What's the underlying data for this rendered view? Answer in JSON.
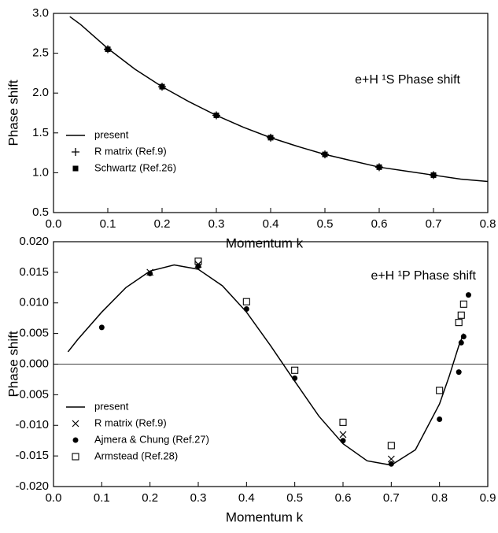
{
  "chart_data": [
    {
      "type": "line",
      "annotation": "e+H ¹S Phase shift",
      "x_label": "Momentum  k",
      "y_label": "Phase shift",
      "xlim": [
        0,
        0.8
      ],
      "ylim": [
        0.5,
        3.0
      ],
      "xticks": [
        {
          "value": 0,
          "label": "0.0"
        },
        0.1,
        0.2,
        0.3,
        0.4,
        0.5,
        0.6,
        0.7,
        0.8
      ],
      "yticks": [
        {
          "value": 0.5,
          "label": "0.5"
        },
        {
          "value": 1,
          "label": "1.0"
        },
        1.5,
        {
          "value": 2,
          "label": "2.0"
        },
        2.5,
        {
          "value": 3,
          "label": "3.0"
        }
      ],
      "legend": "lower left",
      "color": "#000000",
      "series": [
        {
          "name": "present",
          "marker": "line",
          "x": [
            0.03,
            0.05,
            0.1,
            0.15,
            0.2,
            0.25,
            0.3,
            0.35,
            0.4,
            0.45,
            0.5,
            0.55,
            0.6,
            0.65,
            0.7,
            0.75,
            0.8
          ],
          "values": [
            2.96,
            2.86,
            2.56,
            2.3,
            2.08,
            1.89,
            1.72,
            1.57,
            1.44,
            1.33,
            1.23,
            1.15,
            1.07,
            1.02,
            0.97,
            0.92,
            0.89
          ]
        },
        {
          "name": "R matrix (Ref.9)",
          "marker": "plus",
          "x": [
            0.1,
            0.2,
            0.3,
            0.4,
            0.5,
            0.6,
            0.7
          ],
          "values": [
            2.55,
            2.08,
            1.72,
            1.44,
            1.23,
            1.07,
            0.97
          ]
        },
        {
          "name": "Schwartz (Ref.26)",
          "marker": "square-filled",
          "x": [
            0.1,
            0.2,
            0.3,
            0.4,
            0.5,
            0.6,
            0.7
          ],
          "values": [
            2.55,
            2.08,
            1.72,
            1.44,
            1.23,
            1.07,
            0.97
          ]
        }
      ]
    },
    {
      "type": "line",
      "annotation": "e+H ¹P Phase shift",
      "x_label": "Momentum  k",
      "y_label": "Phase shift",
      "xlim": [
        0,
        0.9
      ],
      "ylim": [
        -0.02,
        0.02
      ],
      "zero_line": true,
      "xticks": [
        {
          "value": 0,
          "label": "0.0"
        },
        0.1,
        0.2,
        0.3,
        0.4,
        0.5,
        0.6,
        0.7,
        0.8,
        0.9
      ],
      "yticks": [
        {
          "value": -0.02,
          "label": "-0.020"
        },
        {
          "value": -0.015,
          "label": "-0.015"
        },
        {
          "value": -0.01,
          "label": "-0.010"
        },
        {
          "value": -0.005,
          "label": "-0.005"
        },
        {
          "value": 0,
          "label": "0.000"
        },
        {
          "value": 0.005,
          "label": "0.005"
        },
        {
          "value": 0.01,
          "label": "0.010"
        },
        {
          "value": 0.015,
          "label": "0.015"
        },
        {
          "value": 0.02,
          "label": "0.020"
        }
      ],
      "legend": "lower left",
      "color": "#000000",
      "series": [
        {
          "name": "present",
          "marker": "line",
          "x": [
            0.03,
            0.05,
            0.1,
            0.15,
            0.2,
            0.25,
            0.3,
            0.35,
            0.4,
            0.45,
            0.5,
            0.55,
            0.6,
            0.65,
            0.7,
            0.75,
            0.8,
            0.82,
            0.84,
            0.85
          ],
          "values": [
            0.002,
            0.004,
            0.0085,
            0.0125,
            0.0152,
            0.0162,
            0.0155,
            0.0128,
            0.0085,
            0.003,
            -0.0028,
            -0.0085,
            -0.013,
            -0.0158,
            -0.0165,
            -0.014,
            -0.0065,
            -0.002,
            0.003,
            0.005
          ]
        },
        {
          "name": "R matrix (Ref.9)",
          "marker": "cross",
          "x": [
            0.2,
            0.3,
            0.6,
            0.7
          ],
          "values": [
            0.015,
            0.0163,
            -0.0115,
            -0.0155
          ]
        },
        {
          "name": "Ajmera & Chung (Ref.27)",
          "marker": "circle-filled",
          "x": [
            0.1,
            0.2,
            0.3,
            0.4,
            0.5,
            0.6,
            0.7,
            0.8,
            0.84,
            0.845,
            0.85,
            0.86
          ],
          "values": [
            0.006,
            0.0148,
            0.016,
            0.009,
            -0.0023,
            -0.0125,
            -0.0163,
            -0.009,
            -0.0013,
            0.0035,
            0.0045,
            0.0113
          ]
        },
        {
          "name": "Armstead (Ref.28)",
          "marker": "square-open",
          "x": [
            0.3,
            0.4,
            0.5,
            0.6,
            0.7,
            0.8,
            0.84,
            0.845,
            0.85
          ],
          "values": [
            0.0168,
            0.0102,
            -0.001,
            -0.0095,
            -0.0133,
            -0.0043,
            0.0068,
            0.008,
            0.0098
          ]
        }
      ]
    }
  ]
}
